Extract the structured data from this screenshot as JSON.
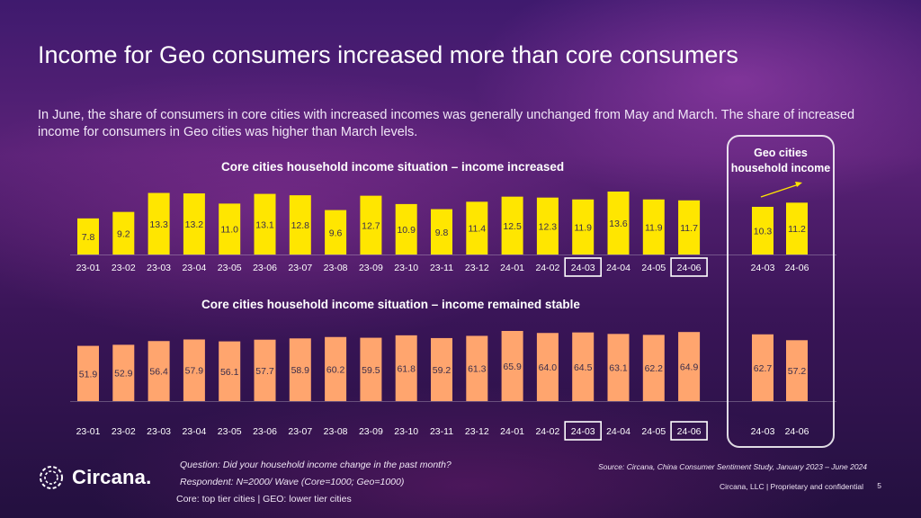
{
  "title": "Income for Geo consumers increased more than core consumers",
  "subtitle": "In June, the share of consumers in core cities with increased incomes was generally unchanged from May and March. The share of increased income for consumers in Geo cities was higher than March levels.",
  "geo_label": "Geo cities household income",
  "colors": {
    "increased": "#ffe600",
    "stable": "#ffa56e",
    "label_text": "#3a2d4a"
  },
  "chart_data": [
    {
      "type": "bar",
      "title": "Core cities household income situation – income increased",
      "categories": [
        "23-01",
        "23-02",
        "23-03",
        "23-04",
        "23-05",
        "23-06",
        "23-07",
        "23-08",
        "23-09",
        "23-10",
        "23-11",
        "23-12",
        "24-01",
        "24-02",
        "24-03",
        "24-04",
        "24-05",
        "24-06"
      ],
      "values": [
        7.8,
        9.2,
        13.3,
        13.2,
        11.0,
        13.1,
        12.8,
        9.6,
        12.7,
        10.9,
        9.8,
        11.4,
        12.5,
        12.3,
        11.9,
        13.6,
        11.9,
        11.7
      ],
      "value_labels": [
        "7.8",
        "9.2",
        "13.3",
        "13.2",
        "11.0",
        "13.1",
        "12.8",
        "9.6",
        "12.7",
        "10.9",
        "9.8",
        "11.4",
        "12.5",
        "12.3",
        "11.9",
        "13.6",
        "11.9",
        "11.7"
      ],
      "highlighted": [
        "24-03",
        "24-06"
      ],
      "geo": {
        "categories": [
          "24-03",
          "24-06"
        ],
        "values": [
          10.3,
          11.2
        ],
        "value_labels": [
          "10.3",
          "11.2"
        ]
      },
      "ylim": [
        0,
        15
      ]
    },
    {
      "type": "bar",
      "title": "Core cities household income situation – income remained stable",
      "categories": [
        "23-01",
        "23-02",
        "23-03",
        "23-04",
        "23-05",
        "23-06",
        "23-07",
        "23-08",
        "23-09",
        "23-10",
        "23-11",
        "23-12",
        "24-01",
        "24-02",
        "24-03",
        "24-04",
        "24-05",
        "24-06"
      ],
      "values": [
        51.9,
        52.9,
        56.4,
        57.9,
        56.1,
        57.7,
        58.9,
        60.2,
        59.5,
        61.8,
        59.2,
        61.3,
        65.9,
        64.0,
        64.5,
        63.1,
        62.2,
        64.9
      ],
      "value_labels": [
        "51.9",
        "52.9",
        "56.4",
        "57.9",
        "56.1",
        "57.7",
        "58.9",
        "60.2",
        "59.5",
        "61.8",
        "59.2",
        "61.3",
        "65.9",
        "64.0",
        "64.5",
        "63.1",
        "62.2",
        "64.9"
      ],
      "highlighted": [
        "24-03",
        "24-06"
      ],
      "geo": {
        "categories": [
          "24-03",
          "24-06"
        ],
        "values": [
          62.7,
          57.2
        ],
        "value_labels": [
          "62.7",
          "57.2"
        ]
      },
      "ylim": [
        0,
        70
      ]
    }
  ],
  "footer": {
    "question": "Question: Did your household income change in the past month?",
    "respondent": "Respondent: N=2000/ Wave (Core=1000; Geo=1000)",
    "core_note": "Core: top tier cities | GEO: lower tier cities",
    "source": "Source: Circana, China Consumer Sentiment Study, January 2023 – June 2024",
    "confidential": "Circana, LLC  |  Proprietary and confidential",
    "page": "5"
  },
  "logo": {
    "text": "Circana."
  }
}
